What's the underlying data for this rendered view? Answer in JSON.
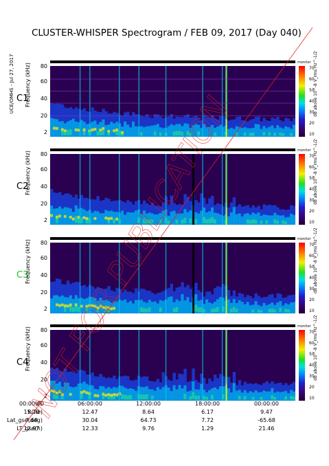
{
  "header": {
    "title": "CLUSTER-WHISPER Spectrogram / FEB 09, 2017 (Day 040)",
    "side_note": "UCE/OMHS - Jul 27, 2017"
  },
  "axis": {
    "y_label": "Frequency (kHz)",
    "y_ticks": [
      "80",
      "60",
      "40",
      "20",
      "2"
    ],
    "colorbar_ticks": [
      "70",
      "60",
      "50",
      "40",
      "30",
      "20",
      "10"
    ],
    "colorbar_label": "dB above 10^-8 V_rms Hz^-1/2",
    "colorbar_top": "monitor",
    "colorbar_colors": [
      "#ff0000",
      "#ff8000",
      "#f0f000",
      "#20e020",
      "#00e0e0",
      "#0090ff",
      "#2020d0",
      "#3a006a",
      "#1e0030"
    ]
  },
  "panels": [
    {
      "name": "C1",
      "color": "#000000"
    },
    {
      "name": "C2",
      "color": "#000000"
    },
    {
      "name": "C3",
      "color": "#20c020"
    },
    {
      "name": "C4",
      "color": "#000000"
    }
  ],
  "bottom_table": {
    "rows": [
      {
        "label": "UT",
        "values": [
          "00:00:00",
          "06:00:00",
          "12:00:00",
          "18:00:00",
          "00:00:00"
        ]
      },
      {
        "label": "R(Re)",
        "values": [
          "15.10",
          "12.47",
          "8.64",
          "6.17",
          "9.47"
        ]
      },
      {
        "label": "Lat_gse(deg)",
        "values": [
          "7.68",
          "30.04",
          "64.73",
          "7.72",
          "-65.68"
        ]
      },
      {
        "label": "LT_gse(h)",
        "values": [
          "12.97",
          "12.33",
          "9.76",
          "1.29",
          "21.46"
        ]
      }
    ]
  },
  "watermark": {
    "text": "NOT FOR PUBLICATION",
    "color": "#e02020"
  },
  "chart_data": {
    "type": "heatmap",
    "title": "CLUSTER-WHISPER Spectrogram / FEB 09, 2017 (Day 040)",
    "xlabel": "UT",
    "ylabel": "Frequency (kHz)",
    "x_ticks": [
      "00:00:00",
      "06:00:00",
      "12:00:00",
      "18:00:00",
      "00:00:00"
    ],
    "ylim": [
      2,
      80
    ],
    "y_ticks": [
      2,
      20,
      40,
      60,
      80
    ],
    "colorbar_range": [
      10,
      70
    ],
    "colorbar_units": "dB above 10^-8 V_rms Hz^-1/2",
    "series": [
      {
        "name": "C1"
      },
      {
        "name": "C2"
      },
      {
        "name": "C3"
      },
      {
        "name": "C4"
      }
    ]
  }
}
